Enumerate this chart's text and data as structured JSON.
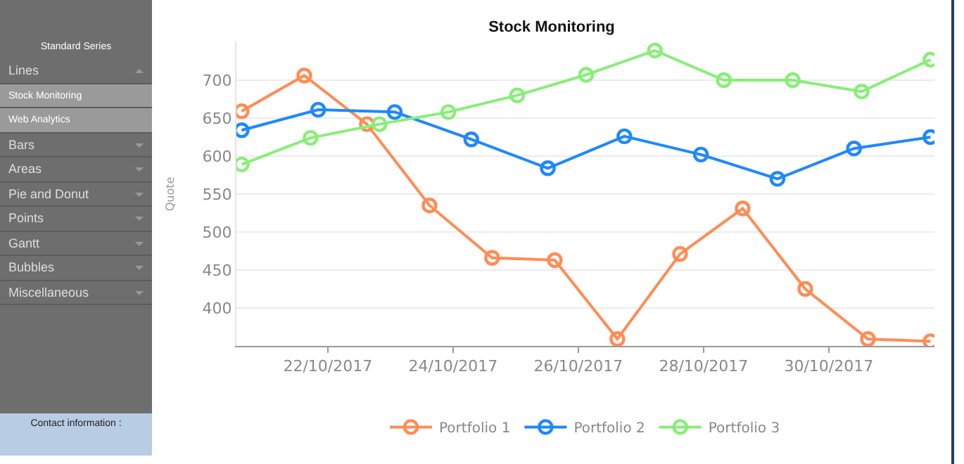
{
  "chart_data": [
    {
      "type": "other",
      "title": "Standard Series",
      "annotations": [
        "Lines",
        "Stock Monitoring",
        "Web Analytics",
        "Bars",
        "Areas",
        "Pie and Donut",
        "Points",
        "Gantt",
        "Bubbles",
        "Miscellaneous",
        "Contact information :"
      ]
    },
    {
      "type": "line",
      "title": "Stock Monitoring",
      "ylabel": "Quote",
      "ylim": [
        350,
        750
      ],
      "yticks": [
        400,
        450,
        500,
        550,
        600,
        650,
        700
      ],
      "xlim": [
        "2017-10-20T13:00",
        "2017-10-31T16:30"
      ],
      "xticks": [
        {
          "value": "2017-10-22",
          "label": "22/10/2017"
        },
        {
          "value": "2017-10-24",
          "label": "24/10/2017"
        },
        {
          "value": "2017-10-26",
          "label": "26/10/2017"
        },
        {
          "value": "2017-10-28",
          "label": "28/10/2017"
        },
        {
          "value": "2017-10-30",
          "label": "30/10/2017"
        }
      ],
      "grid": "y",
      "legend": "bottom",
      "marker": "circle",
      "line_style": "solid",
      "series": [
        {
          "name": "Portfolio 1",
          "color": "#ff8c55",
          "x": [
            "2017-10-20T15:00",
            "2017-10-21T15:00",
            "2017-10-22T15:00",
            "2017-10-23T15:00",
            "2017-10-24T15:00",
            "2017-10-25T15:00",
            "2017-10-26T15:00",
            "2017-10-27T15:00",
            "2017-10-28T15:00",
            "2017-10-29T15:00",
            "2017-10-30T15:00",
            "2017-10-31T15:00"
          ],
          "values": [
            659,
            706,
            642,
            535,
            466,
            463,
            359,
            471,
            531,
            425,
            359,
            356
          ]
        },
        {
          "name": "Portfolio 2",
          "color": "#1e88ff",
          "x": [
            "2017-10-20T15:00",
            "2017-10-21T20:20",
            "2017-10-23T01:40",
            "2017-10-24T07:00",
            "2017-10-25T12:20",
            "2017-10-26T17:40",
            "2017-10-27T23:00",
            "2017-10-29T04:20",
            "2017-10-30T09:40",
            "2017-10-31T15:00"
          ],
          "values": [
            634,
            661,
            658,
            622,
            584,
            626,
            602,
            570,
            610,
            625
          ]
        },
        {
          "name": "Portfolio 3",
          "color": "#88ee77",
          "x": [
            "2017-10-20T15:00",
            "2017-10-21T17:24",
            "2017-10-22T19:48",
            "2017-10-23T22:12",
            "2017-10-25T00:36",
            "2017-10-26T03:00",
            "2017-10-27T05:24",
            "2017-10-28T07:48",
            "2017-10-29T10:12",
            "2017-10-30T12:36",
            "2017-10-31T15:00"
          ],
          "values": [
            589,
            624,
            642,
            658,
            680,
            707,
            739,
            700,
            700,
            685,
            727
          ]
        }
      ]
    }
  ]
}
